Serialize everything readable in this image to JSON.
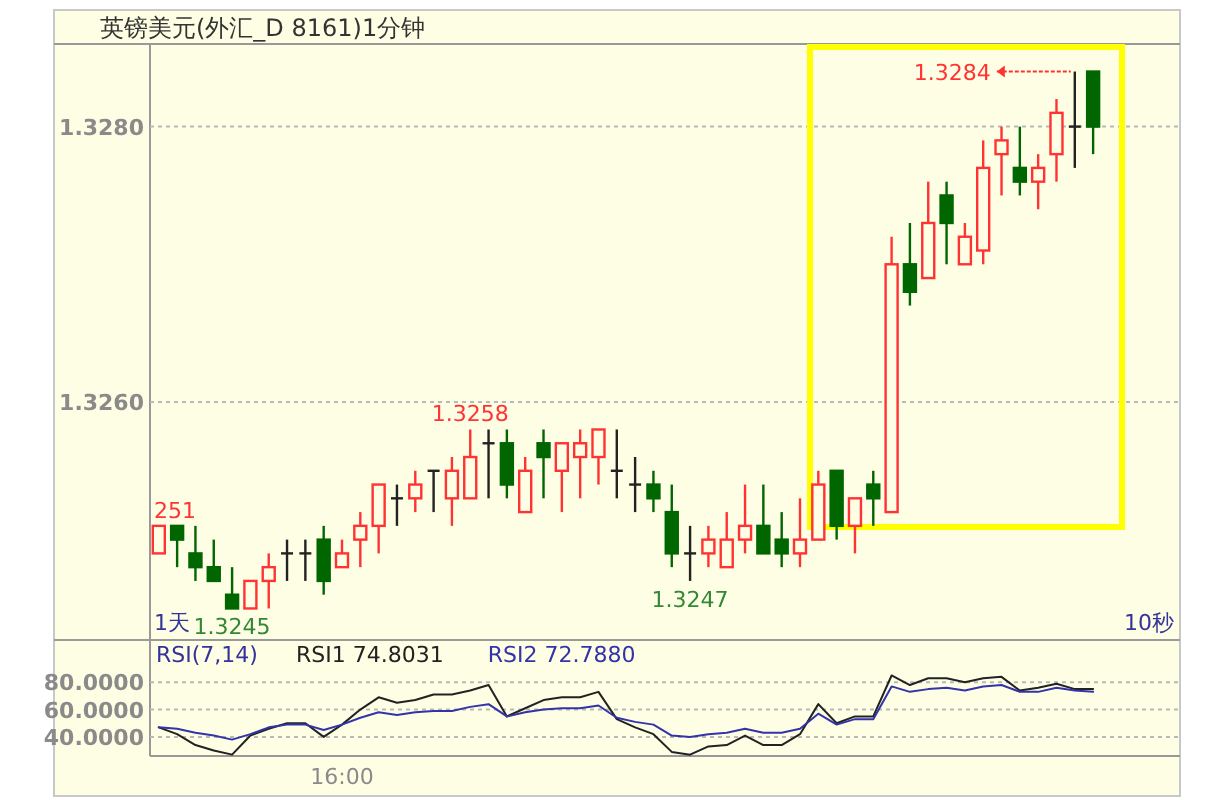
{
  "chart_data": [
    {
      "type": "candlestick",
      "title": "英镑美元(外汇_D 8161)1分钟",
      "categories": [
        null,
        null,
        null,
        null,
        null,
        null,
        null,
        null,
        null,
        null,
        null,
        null,
        null,
        null,
        null,
        null,
        null,
        null,
        null,
        null,
        null,
        null,
        null,
        null,
        null,
        null,
        null,
        null,
        null,
        null,
        null,
        null,
        null,
        null,
        null,
        null,
        null,
        null,
        null,
        null,
        null,
        null,
        null,
        null,
        null,
        null,
        null,
        null,
        null,
        null,
        null,
        null
      ],
      "ohlc": [
        [
          1.3249,
          1.3251,
          1.3249,
          1.3251
        ],
        [
          1.3251,
          1.3251,
          1.3248,
          1.325
        ],
        [
          1.3249,
          1.3251,
          1.3247,
          1.3248
        ],
        [
          1.3248,
          1.325,
          1.3247,
          1.3247
        ],
        [
          1.3246,
          1.3248,
          1.3245,
          1.3245
        ],
        [
          1.3245,
          1.3247,
          1.3245,
          1.3247
        ],
        [
          1.3247,
          1.3249,
          1.3245,
          1.3248
        ],
        [
          1.3249,
          1.325,
          1.3247,
          1.3249
        ],
        [
          1.3249,
          1.325,
          1.3247,
          1.3249
        ],
        [
          1.325,
          1.3251,
          1.3246,
          1.3247
        ],
        [
          1.3248,
          1.325,
          1.3248,
          1.3249
        ],
        [
          1.325,
          1.3252,
          1.3248,
          1.3251
        ],
        [
          1.3251,
          1.3254,
          1.3249,
          1.3254
        ],
        [
          1.3253,
          1.3254,
          1.3251,
          1.3253
        ],
        [
          1.3253,
          1.3255,
          1.3252,
          1.3254
        ],
        [
          1.3255,
          1.3255,
          1.3252,
          1.3255
        ],
        [
          1.3253,
          1.3256,
          1.3251,
          1.3255
        ],
        [
          1.3253,
          1.3258,
          1.3253,
          1.3256
        ],
        [
          1.3257,
          1.3258,
          1.3253,
          1.3257
        ],
        [
          1.3257,
          1.3258,
          1.3253,
          1.3254
        ],
        [
          1.3252,
          1.3256,
          1.3252,
          1.3255
        ],
        [
          1.3257,
          1.3258,
          1.3253,
          1.3256
        ],
        [
          1.3255,
          1.3257,
          1.3252,
          1.3257
        ],
        [
          1.3256,
          1.3258,
          1.3253,
          1.3257
        ],
        [
          1.3256,
          1.3258,
          1.3254,
          1.3258
        ],
        [
          1.3255,
          1.3258,
          1.3253,
          1.3255
        ],
        [
          1.3254,
          1.3256,
          1.3252,
          1.3254
        ],
        [
          1.3254,
          1.3255,
          1.3252,
          1.3253
        ],
        [
          1.3252,
          1.3254,
          1.3248,
          1.3249
        ],
        [
          1.3249,
          1.3251,
          1.3247,
          1.3249
        ],
        [
          1.3249,
          1.3251,
          1.3248,
          1.325
        ],
        [
          1.3248,
          1.3252,
          1.3248,
          1.325
        ],
        [
          1.325,
          1.3254,
          1.3249,
          1.3251
        ],
        [
          1.3251,
          1.3254,
          1.3249,
          1.3249
        ],
        [
          1.325,
          1.3252,
          1.3248,
          1.3249
        ],
        [
          1.3249,
          1.3253,
          1.3248,
          1.325
        ],
        [
          1.325,
          1.3255,
          1.325,
          1.3254
        ],
        [
          1.3255,
          1.3255,
          1.325,
          1.3251
        ],
        [
          1.3251,
          1.3253,
          1.3249,
          1.3253
        ],
        [
          1.3254,
          1.3255,
          1.3251,
          1.3253
        ],
        [
          1.3252,
          1.3272,
          1.3252,
          1.327
        ],
        [
          1.327,
          1.3273,
          1.3267,
          1.3268
        ],
        [
          1.3269,
          1.3276,
          1.3269,
          1.3273
        ],
        [
          1.3275,
          1.3276,
          1.327,
          1.3273
        ],
        [
          1.327,
          1.3273,
          1.327,
          1.3272
        ],
        [
          1.3271,
          1.3279,
          1.327,
          1.3277
        ],
        [
          1.3278,
          1.328,
          1.3275,
          1.3279
        ],
        [
          1.3277,
          1.328,
          1.3275,
          1.3276
        ],
        [
          1.3276,
          1.3278,
          1.3274,
          1.3277
        ],
        [
          1.3278,
          1.3282,
          1.3276,
          1.3281
        ],
        [
          1.328,
          1.3284,
          1.3277,
          1.328
        ],
        [
          1.3284,
          1.3284,
          1.3278,
          1.328
        ]
      ],
      "ylim": [
        1.3243,
        1.3286
      ],
      "yticks": [
        {
          "value": 1.328,
          "label": "1.3280"
        },
        {
          "value": 1.326,
          "label": "1.3260"
        }
      ],
      "grid": "y",
      "tick_labels": "y",
      "annotations": [
        {
          "text": "251",
          "y": 1.3251
        },
        {
          "text": "1.3245",
          "y": 1.3245
        },
        {
          "text": "1.3258",
          "y": 1.3258
        },
        {
          "text": "1.3247",
          "y": 1.3247
        },
        "1.3284",
        "1天",
        "10秒"
      ]
    },
    {
      "type": "line",
      "title": "RSI(7,14)",
      "categories": [
        null,
        null,
        null,
        null,
        null,
        null,
        null,
        null,
        null,
        null,
        "16:00",
        null,
        null,
        null,
        null,
        null,
        null,
        null,
        null,
        null,
        null,
        null,
        null,
        null,
        null,
        null,
        null,
        null,
        null,
        null,
        null,
        null,
        null,
        null,
        null,
        null,
        null,
        null,
        null,
        null,
        null,
        null,
        null,
        null,
        null,
        null,
        null,
        null,
        null,
        null,
        null,
        null
      ],
      "series": [
        {
          "name": "RSI1 74.8031",
          "color": "#222222",
          "values": [
            47,
            42,
            34,
            30,
            27,
            41,
            46,
            50,
            50,
            40,
            49,
            60,
            69,
            65,
            67,
            71,
            71,
            74,
            78,
            55,
            61,
            67,
            69,
            69,
            73,
            53,
            47,
            42,
            29,
            27,
            33,
            34,
            41,
            34,
            34,
            42,
            64,
            50,
            55,
            55,
            85,
            78,
            83,
            83,
            80,
            83,
            84,
            74,
            76,
            79,
            75,
            75
          ]
        },
        {
          "name": "RSI2 72.7880",
          "color": "#3333aa",
          "values": [
            47,
            46,
            43,
            41,
            38,
            42,
            47,
            49,
            49,
            45,
            49,
            54,
            58,
            56,
            58,
            59,
            59,
            62,
            64,
            55,
            58,
            60,
            61,
            61,
            63,
            54,
            51,
            49,
            41,
            40,
            42,
            43,
            46,
            43,
            43,
            46,
            57,
            49,
            53,
            53,
            77,
            73,
            75,
            76,
            74,
            77,
            78,
            73,
            73,
            76,
            74,
            73
          ]
        }
      ],
      "ylim": [
        26,
        111
      ],
      "yticks": [
        {
          "value": 80,
          "label": "80.0000"
        },
        {
          "value": 60,
          "label": "60.0000"
        },
        {
          "value": 40,
          "label": "40.0000"
        }
      ],
      "grid": "y",
      "legend": "top left"
    }
  ]
}
